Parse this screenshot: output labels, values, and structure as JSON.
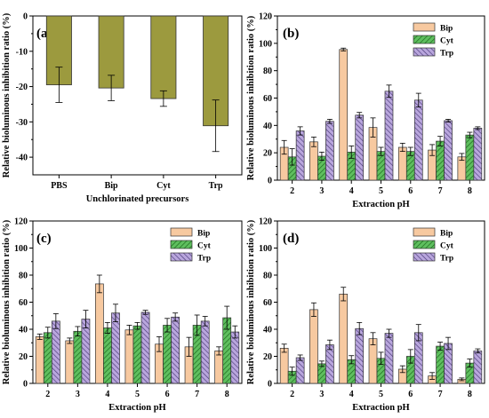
{
  "patterns": {
    "bip_color": "#f7c9a0",
    "cyt_color": "#5fbf5f",
    "trp_color": "#b9a6dd",
    "olive_color": "#9c9a3e"
  },
  "chart_data": [
    {
      "panel": "(a)",
      "type": "bar",
      "categories": [
        "PBS",
        "Bip",
        "Cyt",
        "Trp"
      ],
      "values": [
        -19.5,
        -20.4,
        -23.4,
        -31.1
      ],
      "errors": [
        5.0,
        3.6,
        2.2,
        7.3
      ],
      "xlabel": "Unchlorinated precursors",
      "ylabel": "Relative bioluminous inhibition ratio (%)",
      "ylim": [
        -45,
        0
      ],
      "yticks": [
        0,
        -10,
        -20,
        -30,
        -40
      ],
      "color": "#9c9a3e",
      "axis_position": "top"
    },
    {
      "panel": "(b)",
      "type": "bar",
      "categories": [
        "2",
        "3",
        "4",
        "5",
        "6",
        "7",
        "8"
      ],
      "series": [
        {
          "name": "Bip",
          "values": [
            24,
            28,
            95.5,
            38.5,
            24,
            22,
            17
          ],
          "errors": [
            5,
            3.5,
            1,
            7,
            3,
            4,
            2.5
          ]
        },
        {
          "name": "Cyt",
          "values": [
            17,
            17.5,
            20.5,
            21,
            21,
            28.5,
            33
          ],
          "errors": [
            6,
            3,
            4.5,
            3,
            3,
            3.5,
            2
          ]
        },
        {
          "name": "Trp",
          "values": [
            36,
            43,
            47.5,
            65,
            58.5,
            43.5,
            38
          ],
          "errors": [
            3,
            1.5,
            2,
            4.5,
            5,
            1,
            1
          ]
        }
      ],
      "xlabel": "Extraction pH",
      "ylabel": "Relative bioluminous inhibition ratio (%)",
      "ylim": [
        0,
        120
      ],
      "yticks": [
        0,
        20,
        40,
        60,
        80,
        100,
        120
      ],
      "legend": "top-right"
    },
    {
      "panel": "(c)",
      "type": "bar",
      "categories": [
        "2",
        "3",
        "4",
        "5",
        "6",
        "7",
        "8"
      ],
      "series": [
        {
          "name": "Bip",
          "values": [
            34.5,
            31.5,
            73.5,
            39.5,
            29,
            27,
            24
          ],
          "errors": [
            2,
            2,
            6.5,
            3.5,
            5.5,
            7,
            3
          ]
        },
        {
          "name": "Cyt",
          "values": [
            37.5,
            38.5,
            41,
            42.5,
            43,
            43,
            48.5
          ],
          "errors": [
            4,
            3.5,
            4,
            2.5,
            5,
            7.5,
            8.5
          ]
        },
        {
          "name": "Trp",
          "values": [
            46,
            47.5,
            52,
            52.5,
            49,
            46,
            38
          ],
          "errors": [
            5.5,
            6.5,
            6.5,
            1.5,
            3,
            3.5,
            4.5
          ]
        }
      ],
      "xlabel": "Extraction pH",
      "ylabel": "Relative bioluminous inhibition ratio (%)",
      "ylim": [
        0,
        120
      ],
      "yticks": [
        0,
        20,
        40,
        60,
        80,
        100,
        120
      ],
      "legend": "top-right"
    },
    {
      "panel": "(d)",
      "type": "bar",
      "categories": [
        "2",
        "3",
        "4",
        "5",
        "6",
        "7",
        "8"
      ],
      "series": [
        {
          "name": "Bip",
          "values": [
            26,
            54.5,
            66,
            33,
            10.5,
            5.5,
            3
          ],
          "errors": [
            3,
            5,
            5,
            4.5,
            2.5,
            2.5,
            1
          ]
        },
        {
          "name": "Cyt",
          "values": [
            9,
            14.5,
            17.5,
            18.5,
            20,
            27.5,
            15
          ],
          "errors": [
            3,
            2,
            3,
            4.5,
            5,
            3,
            3
          ]
        },
        {
          "name": "Trp",
          "values": [
            19,
            28.5,
            40.5,
            37,
            37.5,
            29.5,
            24
          ],
          "errors": [
            2,
            3.5,
            4.5,
            3,
            6,
            4.5,
            1.5
          ]
        }
      ],
      "xlabel": "Extraction pH",
      "ylabel": "Relative bioluminous inhibition ratio (%)",
      "ylim": [
        0,
        120
      ],
      "yticks": [
        0,
        20,
        40,
        60,
        80,
        100,
        120
      ],
      "legend": "top-right"
    }
  ]
}
